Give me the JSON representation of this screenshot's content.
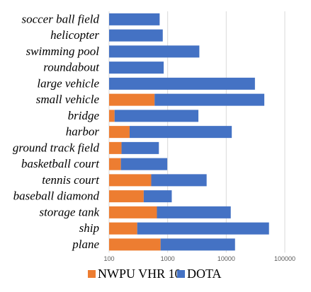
{
  "chart_data": {
    "type": "bar",
    "orientation": "horizontal",
    "stacked": true,
    "x_scale": "log",
    "xlim": [
      100,
      100000
    ],
    "x_ticks": [
      "100",
      "1000",
      "10000",
      "100000"
    ],
    "x_tick_values": [
      100,
      1000,
      10000,
      100000
    ],
    "grid": "vertical",
    "legend_position": "bottom",
    "categories": [
      "soccer ball field",
      "helicopter",
      "swimming pool",
      "roundabout",
      "large vehicle",
      "small vehicle",
      "bridge",
      "harbor",
      "ground track field",
      "basketball court",
      "tennis court",
      "baseball diamond",
      "storage tank",
      "ship",
      "plane"
    ],
    "series": [
      {
        "name": "NWPU VHR 10",
        "color": "#ed7d31",
        "values": [
          0,
          0,
          0,
          0,
          0,
          598,
          124,
          224,
          163,
          159,
          524,
          390,
          655,
          302,
          757
        ]
      },
      {
        "name": "DOTA",
        "color": "#4472c4",
        "values": [
          730,
          825,
          3475,
          855,
          30920,
          44110,
          3225,
          12215,
          545,
          825,
          4105,
          785,
          11295,
          53455,
          13385
        ]
      }
    ]
  }
}
